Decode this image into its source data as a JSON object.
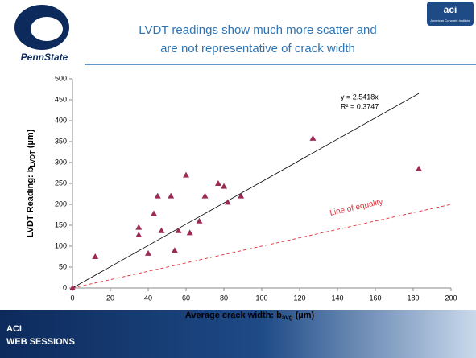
{
  "header": {
    "title_line1": "LVDT readings show much more scatter and",
    "title_line2": "are not representative of crack width",
    "left_logo": "PennState",
    "right_logo": "aci",
    "right_logo_sub": "American Concrete Institute"
  },
  "footer": {
    "line1": "ACI",
    "line2": "WEB SESSIONS"
  },
  "chart_data": {
    "type": "scatter",
    "x_label": {
      "main": "Average crack width: b",
      "sub": "avg",
      "unit": " (µm)"
    },
    "y_label": {
      "main": "LVDT Reading: b",
      "sub": "LVDT",
      "unit": " (µm)"
    },
    "x": [
      0,
      12,
      35,
      35,
      40,
      43,
      45,
      47,
      52,
      54,
      56,
      60,
      62,
      67,
      70,
      77,
      80,
      82,
      89,
      127,
      183
    ],
    "y": [
      0,
      75,
      145,
      127,
      83,
      178,
      220,
      137,
      220,
      90,
      137,
      270,
      132,
      160,
      220,
      250,
      243,
      205,
      220,
      358,
      285
    ],
    "color": "#9b2a55",
    "xlim": [
      0,
      200
    ],
    "xticks": [
      0,
      20,
      40,
      60,
      80,
      100,
      120,
      140,
      160,
      180,
      200
    ],
    "ylim": [
      0,
      500
    ],
    "yticks": [
      0,
      50,
      100,
      150,
      200,
      250,
      300,
      350,
      400,
      450,
      500
    ],
    "trendline": {
      "slope": 2.5418,
      "equation": "y = 2.5418x",
      "r2": "R² = 0.3747"
    },
    "equality_label": "Line of equality"
  }
}
